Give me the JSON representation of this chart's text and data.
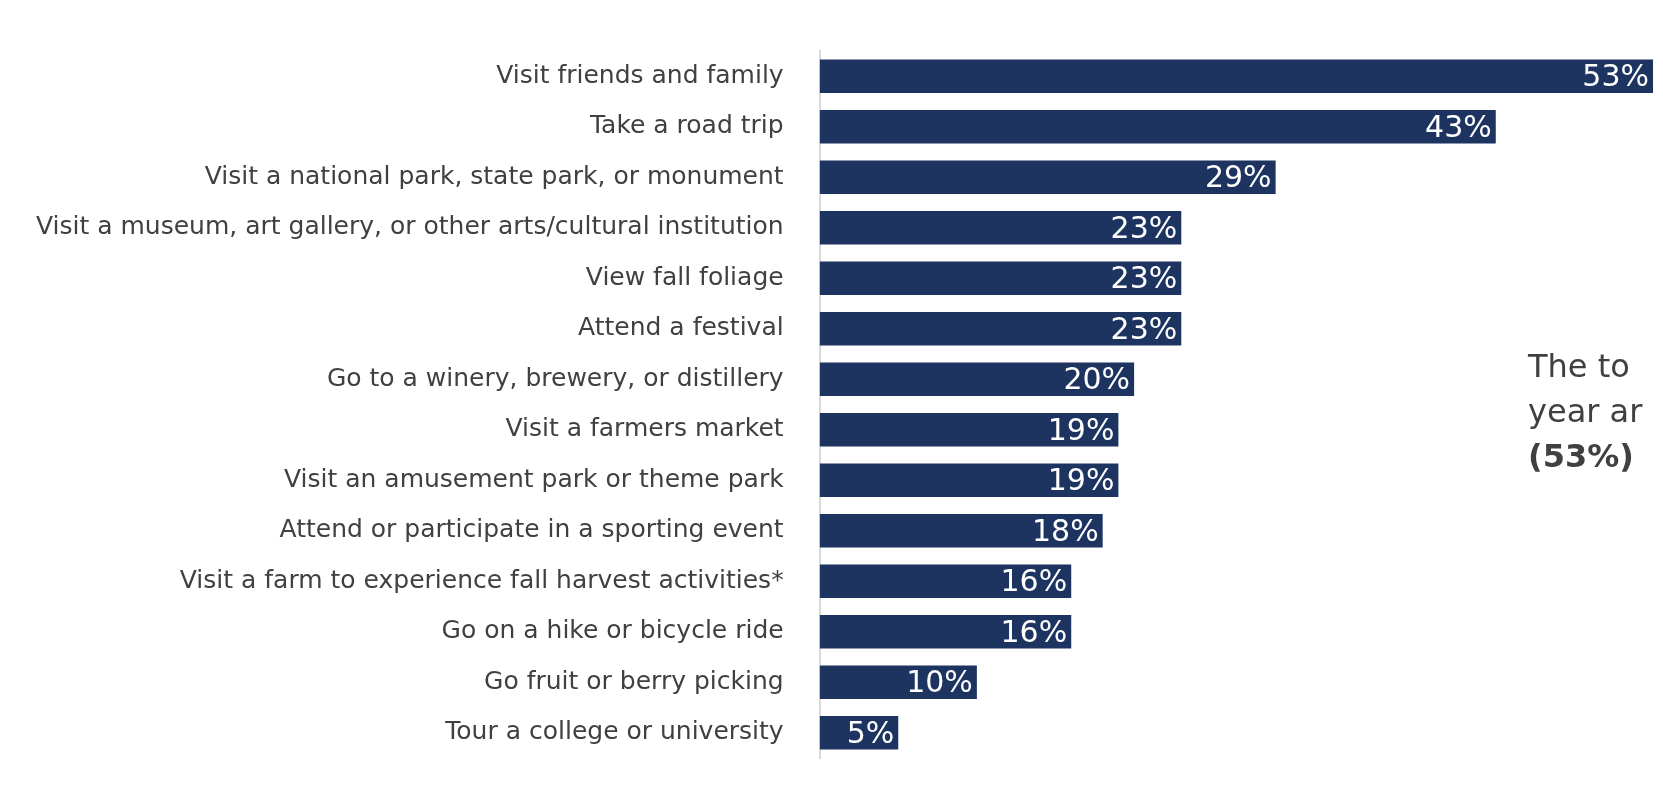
{
  "chart_data": {
    "type": "bar",
    "orientation": "horizontal",
    "categories": [
      "Visit friends and family",
      "Take a road trip",
      "Visit a national park, state park, or monument",
      "Visit a museum, art gallery, or other arts/cultural institution",
      "View fall foliage",
      "Attend a festival",
      "Go to a winery, brewery, or distillery",
      "Visit a farmers market",
      "Visit an amusement park or theme park",
      "Attend or participate in a sporting event",
      "Visit a farm to experience fall harvest activities*",
      "Go on a hike or bicycle ride",
      "Go fruit or berry picking",
      "Tour a college or university"
    ],
    "values": [
      53,
      43,
      29,
      23,
      23,
      23,
      20,
      19,
      19,
      18,
      16,
      16,
      10,
      5
    ],
    "value_labels": [
      "53%",
      "43%",
      "29%",
      "23%",
      "23%",
      "23%",
      "20%",
      "19%",
      "19%",
      "18%",
      "16%",
      "16%",
      "10%",
      "5%"
    ],
    "color": "#1d3360",
    "xlim": [
      0,
      53
    ],
    "tick_labels": "y",
    "legend": false,
    "annotations": [
      "The to",
      "year ar",
      "(53%)"
    ]
  }
}
